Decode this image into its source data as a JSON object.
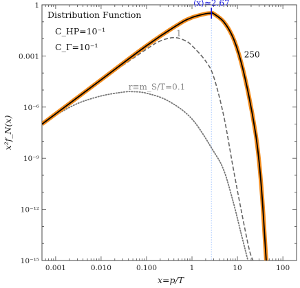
{
  "chart_data": {
    "type": "line",
    "xlabel": "x=p/T",
    "ylabel": "x²f_N(x)",
    "xscale": "log",
    "yscale": "log",
    "xlim": [
      0.0005,
      200
    ],
    "ylim": [
      1e-15,
      1
    ],
    "x_ticks": [
      {
        "value": 0.001,
        "label": "0.001"
      },
      {
        "value": 0.01,
        "label": "0.010"
      },
      {
        "value": 0.1,
        "label": "0.100"
      },
      {
        "value": 1,
        "label": "1"
      },
      {
        "value": 10,
        "label": "10"
      },
      {
        "value": 100,
        "label": "100"
      }
    ],
    "y_ticks": [
      {
        "value": 1,
        "label": "1"
      },
      {
        "value": 0.001,
        "label": "0.001"
      },
      {
        "value": 1e-06,
        "label": "10⁻⁶"
      },
      {
        "value": 1e-09,
        "label": "10⁻⁹"
      },
      {
        "value": 1e-12,
        "label": "10⁻¹²"
      },
      {
        "value": 1e-15,
        "label": "10⁻¹⁵"
      }
    ],
    "legend": {
      "position": "top-left",
      "lines": [
        "Distribution Function",
        "C_HP=10⁻¹",
        "C_Γ=10⁻¹"
      ]
    },
    "series": [
      {
        "name": "250",
        "style": "solid",
        "color": "#000000",
        "halo_color": "#f28c1e",
        "points": [
          [
            0.0005,
            1e-07
          ],
          [
            0.001,
            4e-07
          ],
          [
            0.01,
            4e-05
          ],
          [
            0.1,
            0.004
          ],
          [
            0.5,
            0.07
          ],
          [
            1,
            0.18
          ],
          [
            2,
            0.3
          ],
          [
            2.67,
            0.32
          ],
          [
            3,
            0.3
          ],
          [
            5,
            0.1
          ],
          [
            8,
            0.012
          ],
          [
            12,
            0.00045
          ],
          [
            18,
            4e-06
          ],
          [
            25,
            3e-08
          ],
          [
            30,
            6e-10
          ],
          [
            35,
            5e-12
          ],
          [
            40,
            2e-14
          ],
          [
            43,
            1e-15
          ]
        ]
      },
      {
        "name": "1",
        "style": "dashed",
        "color": "#666666",
        "points": [
          [
            0.0005,
            1e-07
          ],
          [
            0.001,
            4e-07
          ],
          [
            0.01,
            3.6e-05
          ],
          [
            0.1,
            0.0025
          ],
          [
            0.2,
            0.0075
          ],
          [
            0.4,
            0.012
          ],
          [
            0.7,
            0.008
          ],
          [
            1,
            0.004
          ],
          [
            2,
            0.0005
          ],
          [
            3,
            6e-05
          ],
          [
            5,
            3e-07
          ],
          [
            8,
            3e-10
          ],
          [
            12,
            1e-12
          ],
          [
            18,
            5e-15
          ],
          [
            22,
            1e-15
          ]
        ]
      },
      {
        "name": "r≡m_S/T=0.1",
        "style": "dotted",
        "color": "#777777",
        "points": [
          [
            0.0005,
            1e-07
          ],
          [
            0.001,
            3.3e-07
          ],
          [
            0.003,
            1.6e-06
          ],
          [
            0.01,
            4.5e-06
          ],
          [
            0.03,
            7.5e-06
          ],
          [
            0.05,
            8e-06
          ],
          [
            0.1,
            6.5e-06
          ],
          [
            0.3,
            2.3e-06
          ],
          [
            1,
            2e-07
          ],
          [
            3,
            2.5e-09
          ],
          [
            5,
            2e-10
          ],
          [
            8,
            3e-12
          ],
          [
            12,
            4e-14
          ],
          [
            17,
            1e-15
          ]
        ]
      }
    ],
    "annotations": [
      {
        "text": "⟨x⟩≃2.67",
        "x": 2.67,
        "y": 0.32,
        "color": "#1a1adf",
        "type": "mean-marker"
      },
      {
        "text": "1",
        "x": 0.45,
        "y": 0.012,
        "color": "#888888"
      },
      {
        "text": "250",
        "x": 14,
        "y": 0.0012,
        "color": "#111111"
      },
      {
        "text": "r≡m_S/T=0.1",
        "x": 0.04,
        "y": 8e-06,
        "color": "#888888"
      }
    ]
  }
}
